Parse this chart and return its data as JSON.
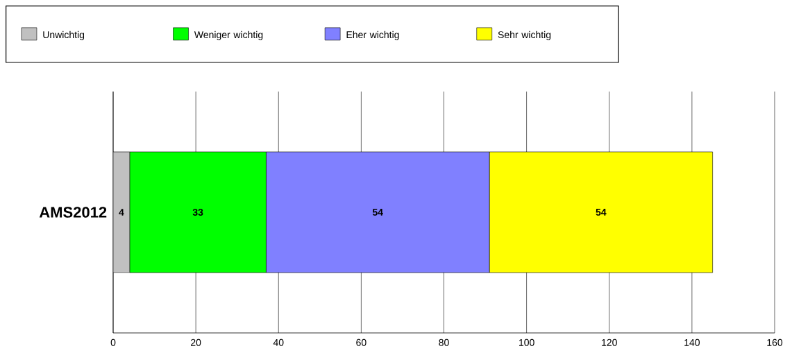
{
  "chart_data": {
    "type": "bar",
    "orientation": "horizontal",
    "stacked": true,
    "categories": [
      "AMS2012"
    ],
    "series": [
      {
        "name": "Unwichtig",
        "color": "#c0c0c0",
        "values": [
          4
        ]
      },
      {
        "name": "Weniger wichtig",
        "color": "#00ff00",
        "values": [
          33
        ]
      },
      {
        "name": "Eher wichtig",
        "color": "#8080ff",
        "values": [
          54
        ]
      },
      {
        "name": "Sehr wichtig",
        "color": "#ffff00",
        "values": [
          54
        ]
      }
    ],
    "xlim": [
      0,
      160
    ],
    "xticks": [
      0,
      20,
      40,
      60,
      80,
      100,
      120,
      140,
      160
    ],
    "grid": "x",
    "legend": "top",
    "data_labels": true
  }
}
